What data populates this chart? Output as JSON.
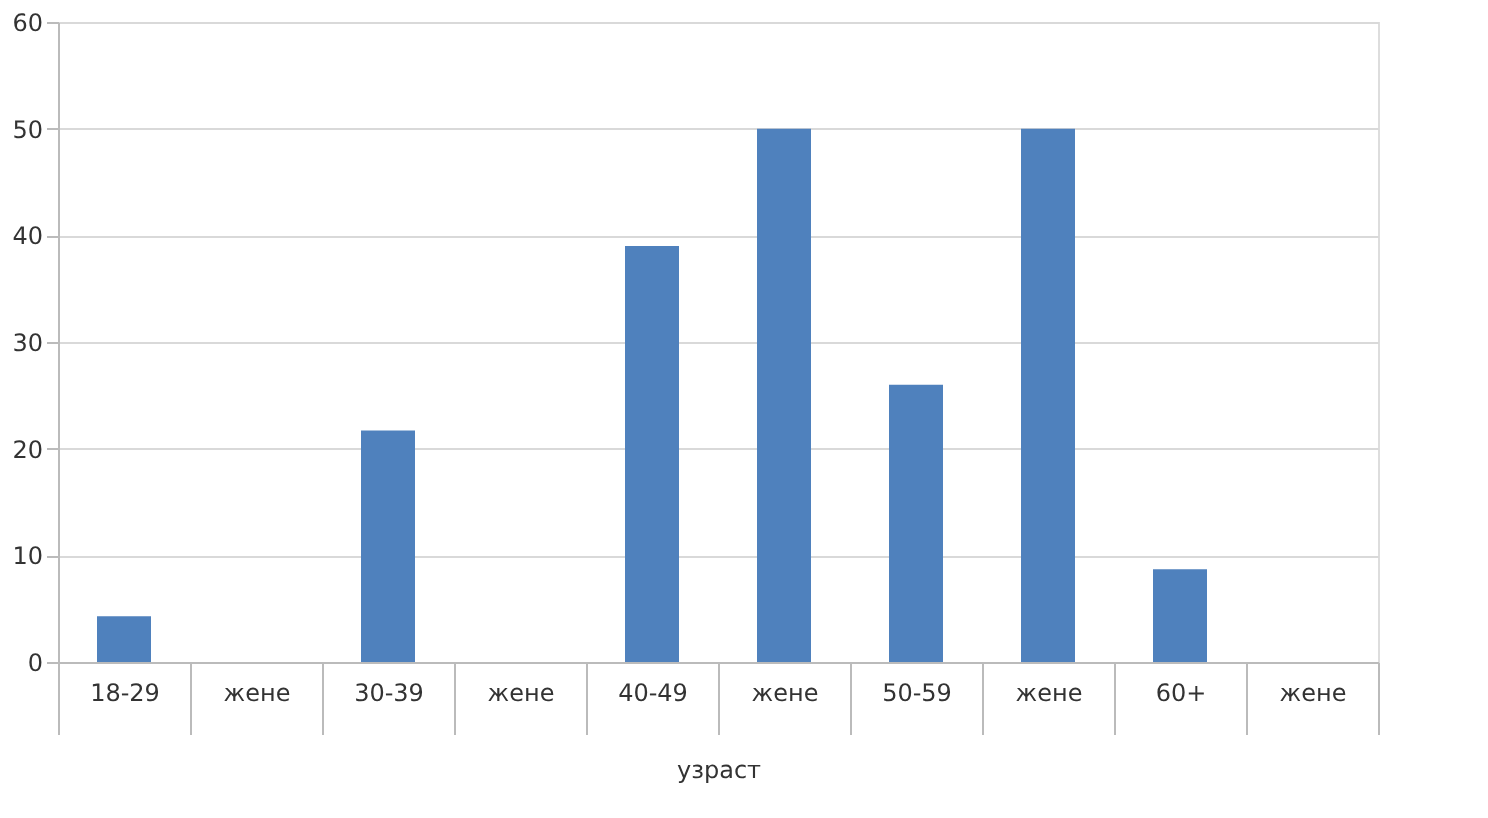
{
  "chart_data": {
    "type": "bar",
    "xlabel": "узраст",
    "categories": [
      "18-29",
      "жене",
      "30-39",
      "жене",
      "40-49",
      "жене",
      "50-59",
      "жене",
      "60+",
      "жене"
    ],
    "values": [
      4.3,
      null,
      21.7,
      null,
      39,
      50,
      26,
      50,
      8.7,
      null
    ],
    "color": "#4f81bd",
    "ylim": [
      0,
      60
    ],
    "yticks": [
      0,
      10,
      20,
      30,
      40,
      50,
      60
    ],
    "grid": "y"
  }
}
